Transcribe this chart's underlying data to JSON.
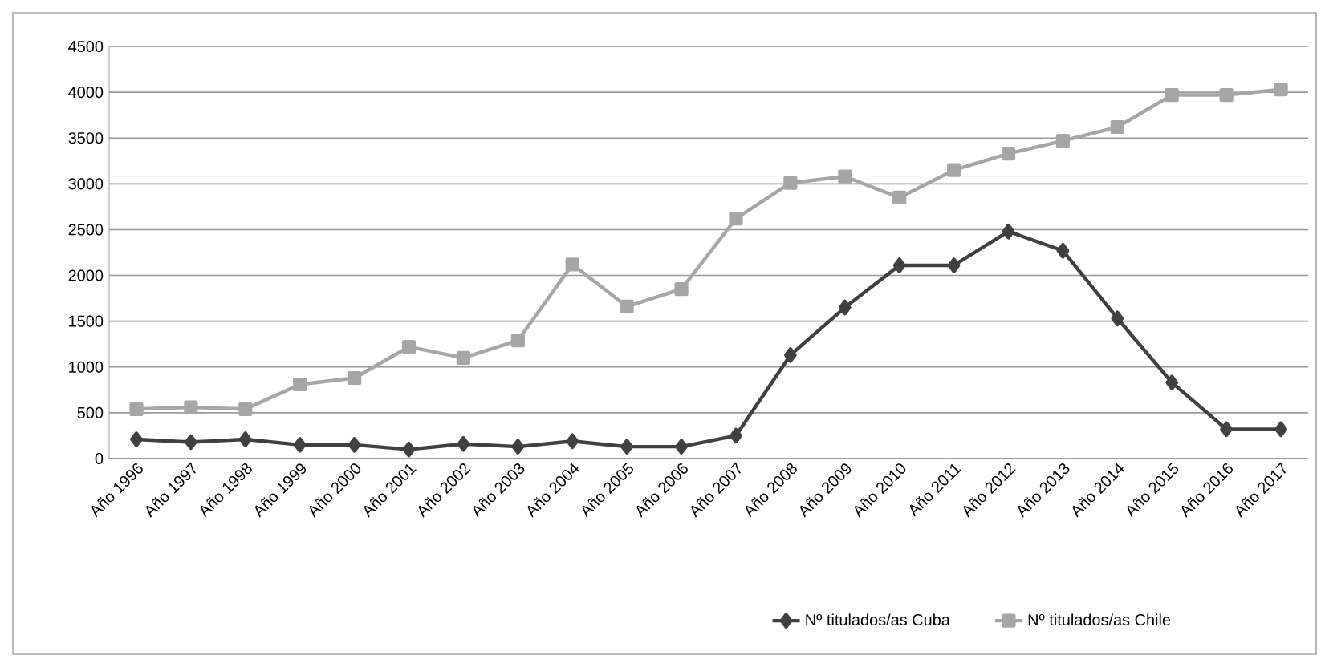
{
  "chart_data": {
    "type": "line",
    "categories": [
      "Año 1996",
      "Año 1997",
      "Año 1998",
      "Año 1999",
      "Año 2000",
      "Año 2001",
      "Año 2002",
      "Año 2003",
      "Año 2004",
      "Año 2005",
      "Año 2006",
      "Año 2007",
      "Año 2008",
      "Año 2009",
      "Año 2010",
      "Año 2011",
      "Año 2012",
      "Año 2013",
      "Año 2014",
      "Año 2015",
      "Año 2016",
      "Año 2017"
    ],
    "series": [
      {
        "name": "Nº titulados/as Cuba",
        "color": "#404040",
        "marker": "diamond",
        "values": [
          210,
          180,
          210,
          150,
          150,
          100,
          160,
          130,
          190,
          130,
          130,
          250,
          1130,
          1650,
          2110,
          2110,
          2480,
          2270,
          1530,
          830,
          320,
          320
        ]
      },
      {
        "name": "Nº titulados/as  Chile",
        "color": "#a6a6a6",
        "marker": "square",
        "values": [
          540,
          560,
          540,
          810,
          880,
          1220,
          1100,
          1290,
          2120,
          1660,
          1850,
          2620,
          3010,
          3080,
          2850,
          3150,
          3330,
          3470,
          3620,
          3970,
          3970,
          4030
        ]
      }
    ],
    "ylim": [
      0,
      4500
    ],
    "yticks": [
      0,
      500,
      1000,
      1500,
      2000,
      2500,
      3000,
      3500,
      4000,
      4500
    ],
    "grid": "y",
    "legend": "bottom",
    "line_style": "solid"
  }
}
